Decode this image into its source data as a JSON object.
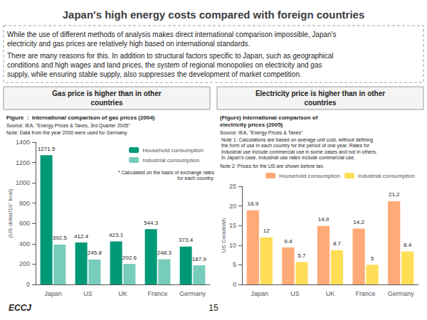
{
  "title": "Japan's high energy costs compared with foreign countries",
  "annotations": [
    "While the use of different methods of analysis makes direct international comparison impossible, Japan's\nelectricity and gas prices are relatively high based on international standards.",
    "There are many reasons for this. In addition to structural factors specific to Japan, such as geographical\nconditions and high wages and land prices, the system of regional monopolies on electricity and gas\nsupply, while ensuring stable supply, also suppresses the development of market competition.",
    "ECCJ",
    "15"
  ],
  "chart_data": [
    {
      "type": "bar",
      "title": "Gas price is higher than in other\ncountries",
      "subtitle": "Figure  :  International comparison of gas prices (2004)",
      "annotations": [
        "Source: IEA, \"Energy Prices & Taxes, 3rd Quarter 2005\"",
        "Note: Data from the year 2000 were used for Germany.",
        "* Calculated on the basis of exchange rates\n  for each country."
      ],
      "ylabel": "(US dollar/10⁷ kcal)",
      "categories": [
        "Japan",
        "US",
        "UK",
        "France",
        "Germany"
      ],
      "series": [
        {
          "name": "Household consumption",
          "color": "#009977",
          "values": [
            1271.5,
            412.4,
            423.1,
            544.3,
            373.4
          ]
        },
        {
          "name": "Industrial consumption",
          "color": "#77CCBB",
          "values": [
            392.5,
            245.8,
            202.6,
            248.3,
            187.9
          ]
        }
      ],
      "ylim": [
        0,
        1400
      ],
      "yticks": [
        0,
        200,
        400,
        600,
        800,
        1000,
        1200,
        1400
      ],
      "data_labels": true,
      "legend": "upper right",
      "grid": false
    },
    {
      "type": "bar",
      "title": "Electricity price is higher than in other\ncountries",
      "subtitle": "(Figure) International comparison of\nelectricity prices (2005)",
      "annotations": [
        "Source: IEA, \"Energy Prices & Taxes\"",
        " Note 1: Calculations are based on average unit cost, without defining\n the form of use in each country for the period of one year. Rates for\n industrial use include commercial use in some cases and not in others.\n In Japan's case, industrial use rates include commercial use.",
        "Note 2: Prices for the US are shown before tax."
      ],
      "ylabel": "US Cent/kWh",
      "categories": [
        "Japan",
        "US",
        "UK",
        "France",
        "Germany"
      ],
      "series": [
        {
          "name": "Household consumption",
          "color": "#FFAA77",
          "values": [
            18.9,
            9.4,
            14.9,
            14.2,
            21.2
          ]
        },
        {
          "name": "Industrial consumption",
          "color": "#FFDD55",
          "values": [
            12,
            5.7,
            8.7,
            5,
            8.4
          ]
        }
      ],
      "ylim": [
        0,
        25
      ],
      "yticks": [
        0,
        5,
        10,
        15,
        20,
        25
      ],
      "data_labels": true,
      "legend": "upper right",
      "grid": false
    }
  ]
}
